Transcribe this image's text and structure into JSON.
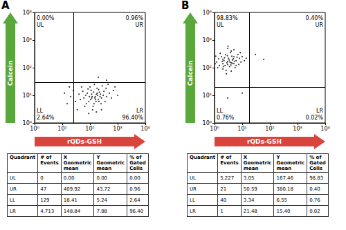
{
  "chart_data": [
    {
      "type": "scatter",
      "title": "A",
      "x_label": "rQDs-GSH",
      "y_label": "Calcein",
      "log": true,
      "grid": false,
      "color": "#000000",
      "xlim": [
        1,
        10000
      ],
      "ylim": [
        1,
        10000
      ],
      "xticks": [
        {
          "value": 1,
          "label": "10⁰"
        },
        {
          "value": 10,
          "label": "10¹"
        },
        {
          "value": 100,
          "label": "10²"
        },
        {
          "value": 1000,
          "label": "10³"
        },
        {
          "value": 10000,
          "label": "10⁴"
        }
      ],
      "yticks": [
        {
          "value": 1,
          "label": "10⁰"
        },
        {
          "value": 10,
          "label": "10¹"
        },
        {
          "value": 100,
          "label": "10²"
        },
        {
          "value": 1000,
          "label": "10³"
        },
        {
          "value": 10000,
          "label": "10⁴"
        }
      ],
      "gates": {
        "x": 25,
        "y": 30
      },
      "quadrants": [
        {
          "name": "UL",
          "value": 0,
          "label": "0.00%"
        },
        {
          "name": "UR",
          "value": 0.96,
          "label": "0.96%"
        },
        {
          "name": "LL",
          "value": 2.64,
          "label": "2.64%"
        },
        {
          "name": "LR",
          "value": 96.4,
          "label": "96.40%"
        }
      ],
      "points": [
        [
          150,
          8
        ],
        [
          120,
          9
        ],
        [
          200,
          7
        ],
        [
          90,
          6
        ],
        [
          300,
          10
        ],
        [
          80,
          12
        ],
        [
          250,
          5
        ],
        [
          60,
          8
        ],
        [
          400,
          9
        ],
        [
          110,
          15
        ],
        [
          170,
          11
        ],
        [
          140,
          5
        ],
        [
          220,
          13
        ],
        [
          70,
          10
        ],
        [
          500,
          12
        ],
        [
          45,
          7
        ],
        [
          130,
          4
        ],
        [
          350,
          6
        ],
        [
          100,
          20
        ],
        [
          180,
          18
        ],
        [
          260,
          8
        ],
        [
          95,
          9
        ],
        [
          160,
          7
        ],
        [
          190,
          10
        ],
        [
          210,
          6
        ],
        [
          75,
          5
        ],
        [
          115,
          11
        ],
        [
          135,
          13
        ],
        [
          155,
          9
        ],
        [
          240,
          11
        ],
        [
          320,
          14
        ],
        [
          40,
          11
        ],
        [
          55,
          14
        ],
        [
          65,
          4
        ],
        [
          85,
          17
        ],
        [
          600,
          8
        ],
        [
          700,
          15
        ],
        [
          280,
          22
        ],
        [
          125,
          3
        ],
        [
          145,
          25
        ],
        [
          30,
          6
        ],
        [
          20,
          9
        ],
        [
          15,
          5
        ],
        [
          12,
          12
        ],
        [
          35,
          3
        ],
        [
          170,
          2.5
        ],
        [
          90,
          2.2
        ],
        [
          260,
          3
        ],
        [
          1000,
          10
        ],
        [
          800,
          20
        ],
        [
          450,
          25
        ],
        [
          105,
          7
        ],
        [
          115,
          8
        ],
        [
          165,
          6
        ],
        [
          185,
          12
        ],
        [
          230,
          9
        ],
        [
          205,
          16
        ],
        [
          380,
          18
        ],
        [
          50,
          20
        ],
        [
          25,
          15
        ],
        [
          18,
          20
        ],
        [
          200,
          45
        ],
        [
          400,
          35
        ]
      ]
    },
    {
      "type": "scatter",
      "title": "B",
      "x_label": "rQDs-GSH",
      "y_label": "Calcein",
      "log": true,
      "grid": false,
      "color": "#000000",
      "xlim": [
        1,
        10000
      ],
      "ylim": [
        1,
        10000
      ],
      "xticks": [
        {
          "value": 1,
          "label": "10⁰"
        },
        {
          "value": 10,
          "label": "10¹"
        },
        {
          "value": 100,
          "label": "10²"
        },
        {
          "value": 1000,
          "label": "10³"
        },
        {
          "value": 10000,
          "label": "10⁴"
        }
      ],
      "yticks": [
        {
          "value": 1,
          "label": "10⁰"
        },
        {
          "value": 10,
          "label": "10¹"
        },
        {
          "value": 100,
          "label": "10²"
        },
        {
          "value": 1000,
          "label": "10³"
        },
        {
          "value": 10000,
          "label": "10⁴"
        }
      ],
      "gates": {
        "x": 18,
        "y": 20
      },
      "quadrants": [
        {
          "name": "UL",
          "value": 98.83,
          "label": "98.83%"
        },
        {
          "name": "UR",
          "value": 0.4,
          "label": "0.40%"
        },
        {
          "name": "LL",
          "value": 0.76,
          "label": "0.76%"
        },
        {
          "name": "LR",
          "value": 0.02,
          "label": "0.02%"
        }
      ],
      "points": [
        [
          3,
          170
        ],
        [
          2,
          200
        ],
        [
          4,
          150
        ],
        [
          1.5,
          120
        ],
        [
          5,
          250
        ],
        [
          2.5,
          300
        ],
        [
          6,
          180
        ],
        [
          3.5,
          110
        ],
        [
          1.2,
          160
        ],
        [
          8,
          220
        ],
        [
          2,
          90
        ],
        [
          4,
          400
        ],
        [
          3,
          130
        ],
        [
          1.8,
          250
        ],
        [
          5,
          140
        ],
        [
          7,
          300
        ],
        [
          2.2,
          180
        ],
        [
          3.2,
          220
        ],
        [
          4.5,
          190
        ],
        [
          2.8,
          150
        ],
        [
          1.4,
          210
        ],
        [
          6,
          120
        ],
        [
          9,
          160
        ],
        [
          3.8,
          350
        ],
        [
          2.6,
          80
        ],
        [
          1.1,
          260
        ],
        [
          5.5,
          100
        ],
        [
          4.2,
          260
        ],
        [
          3,
          500
        ],
        [
          2,
          140
        ],
        [
          10,
          250
        ],
        [
          12,
          180
        ],
        [
          1.3,
          100
        ],
        [
          2.4,
          120
        ],
        [
          3.6,
          160
        ],
        [
          4.8,
          210
        ],
        [
          6.5,
          240
        ],
        [
          1.6,
          330
        ],
        [
          2.9,
          270
        ],
        [
          3.4,
          190
        ],
        [
          5.2,
          170
        ],
        [
          7.5,
          130
        ],
        [
          1.9,
          170
        ],
        [
          4,
          75
        ],
        [
          2.7,
          60
        ],
        [
          8.5,
          350
        ],
        [
          3.1,
          600
        ],
        [
          1.05,
          140
        ],
        [
          14,
          220
        ],
        [
          5,
          450
        ],
        [
          2.3,
          230
        ],
        [
          3.9,
          125
        ],
        [
          4.4,
          145
        ],
        [
          2.1,
          110
        ],
        [
          30,
          300
        ],
        [
          60,
          200
        ],
        [
          3,
          8
        ],
        [
          10,
          12
        ]
      ]
    }
  ],
  "tables": [
    {
      "header": [
        "Quadrant",
        "# of Events",
        "X Geometric mean",
        "Y Geometric mean",
        "% of Gated Cells"
      ],
      "rows": [
        [
          "UL",
          "0",
          "0.00",
          "0.00",
          "0.00"
        ],
        [
          "UR",
          "47",
          "409.92",
          "43.72",
          "0.96"
        ],
        [
          "LL",
          "129",
          "18.41",
          "5.24",
          "2.64"
        ],
        [
          "LR",
          "4,713",
          "148.84",
          "7.88",
          "96.40"
        ]
      ]
    },
    {
      "header": [
        "Quadrant",
        "# of Events",
        "X Geometric mean",
        "Y Geometric mean",
        "% of Gated Cells"
      ],
      "rows": [
        [
          "UL",
          "5,227",
          "3.05",
          "167.46",
          "98.83"
        ],
        [
          "UR",
          "21",
          "50.59",
          "380.18",
          "0.40"
        ],
        [
          "LL",
          "40",
          "3.34",
          "6.55",
          "0.76"
        ],
        [
          "LR",
          "1",
          "21.48",
          "15.40",
          "0.02"
        ]
      ]
    }
  ]
}
